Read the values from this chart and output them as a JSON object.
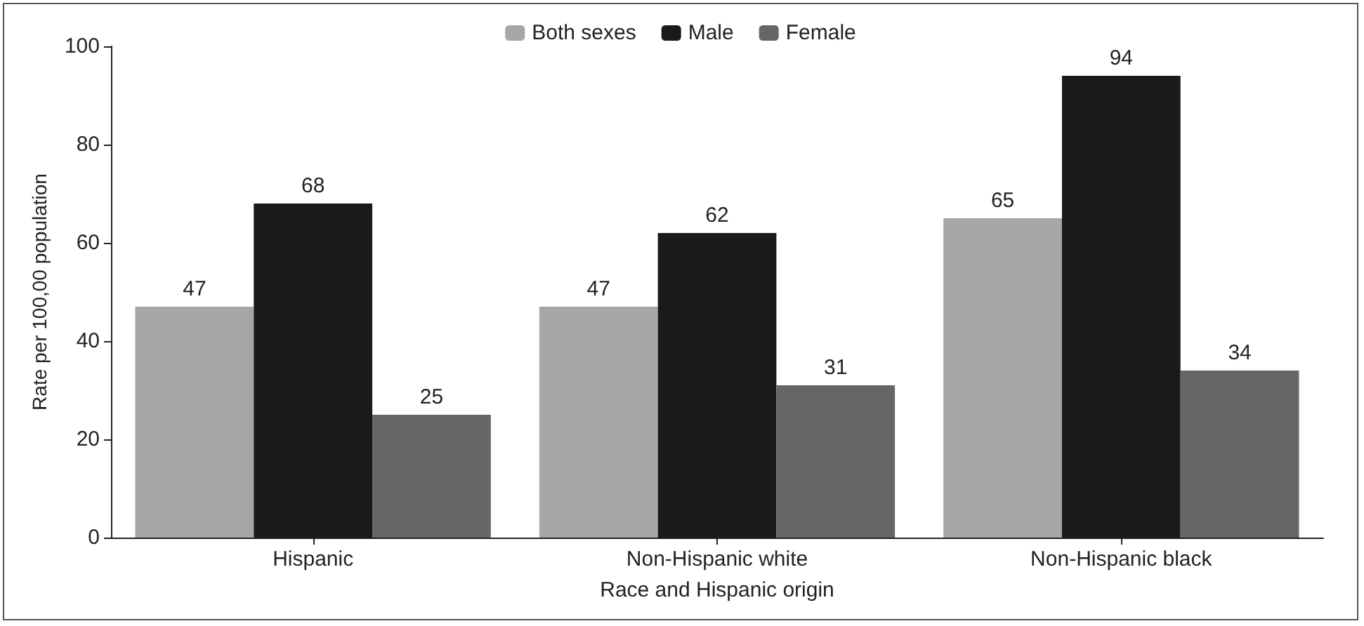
{
  "chart_data": {
    "type": "bar",
    "xlabel": "Race and Hispanic origin",
    "ylabel": "Rate per 100,00 population",
    "categories": [
      "Hispanic",
      "Non-Hispanic white",
      "Non-Hispanic black"
    ],
    "series": [
      {
        "name": "Both sexes",
        "color": "#a6a6a6",
        "values": [
          47,
          47,
          65
        ]
      },
      {
        "name": "Male",
        "color": "#1a1a1a",
        "values": [
          68,
          62,
          94
        ]
      },
      {
        "name": "Female",
        "color": "#666666",
        "values": [
          25,
          31,
          34
        ]
      }
    ],
    "ylim": [
      0,
      100
    ],
    "yticks": [
      0,
      20,
      40,
      60,
      80,
      100
    ],
    "grid": false,
    "legend": "top",
    "data_labels": true
  }
}
